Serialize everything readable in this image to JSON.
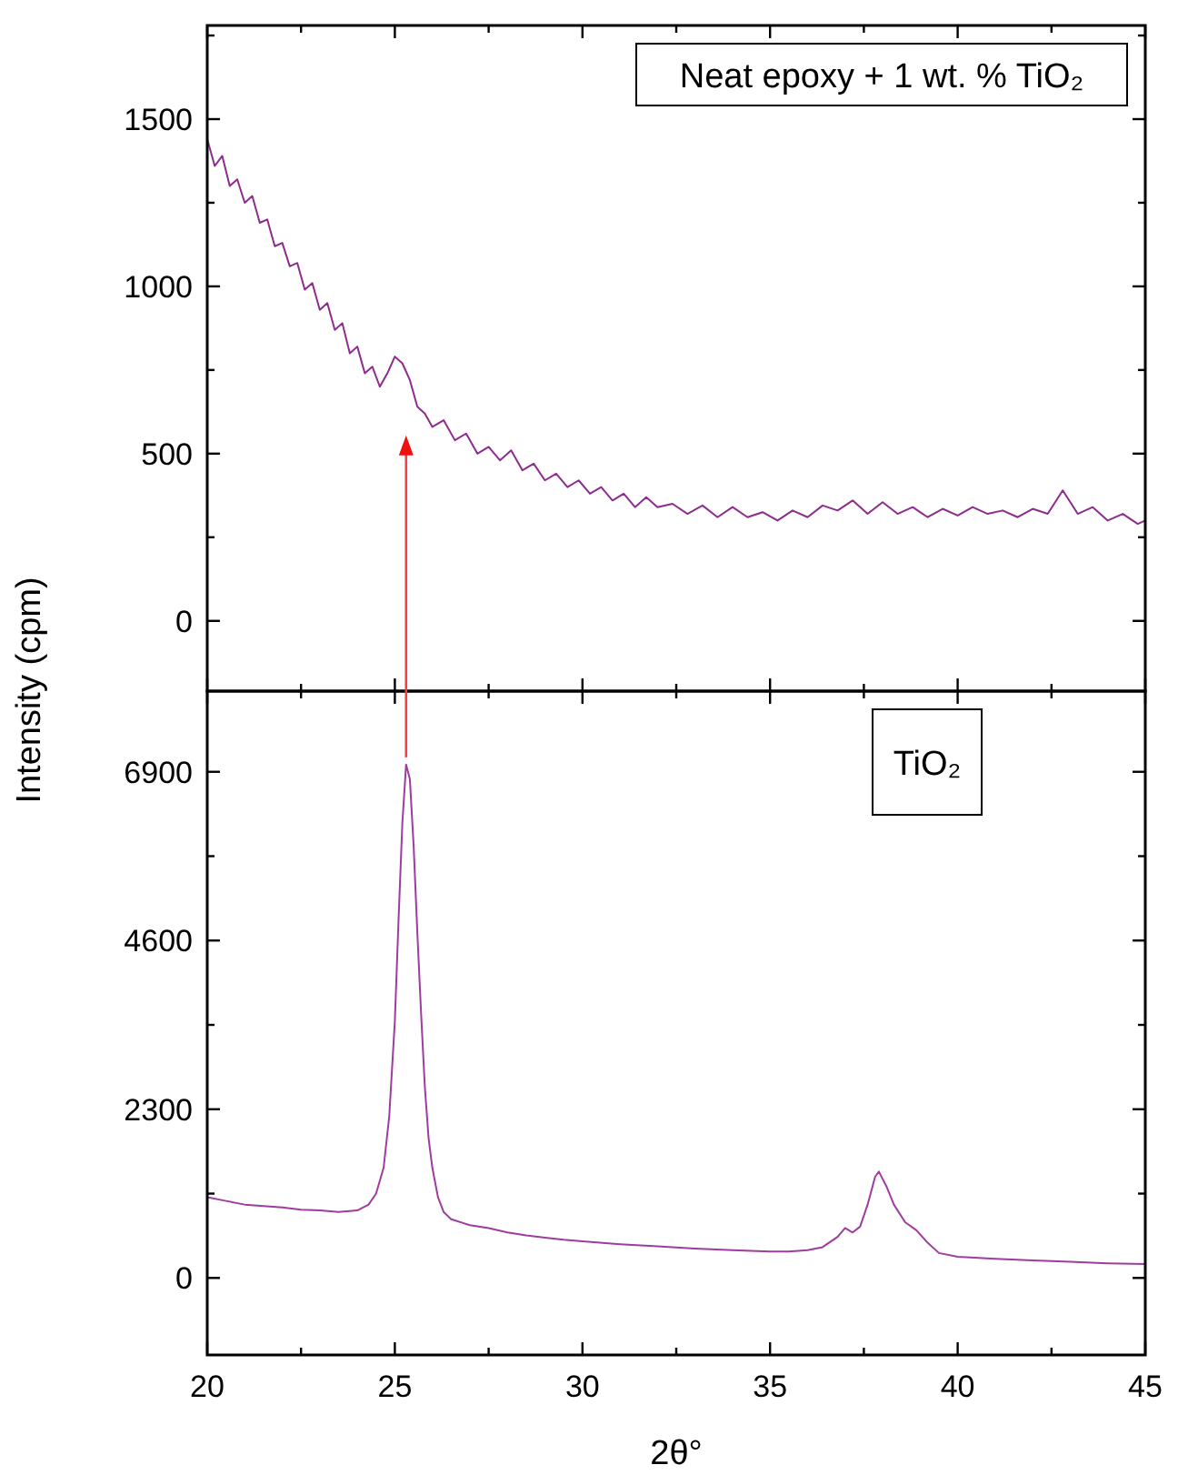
{
  "chart_data": [
    {
      "type": "line",
      "ylabel": "Intensity (cpm)",
      "annotations": [
        "Neat epoxy + 1 wt. % TiO₂"
      ],
      "tick_labels": "y",
      "xlim": [
        20,
        45
      ],
      "xticks": [
        20,
        {
          "value": 22.5,
          "label": null
        },
        25,
        {
          "value": 27.5,
          "label": null
        },
        30,
        {
          "value": 32.5,
          "label": null
        },
        35,
        {
          "value": 37.5,
          "label": null
        },
        40,
        {
          "value": 42.5,
          "label": null
        },
        45
      ],
      "ylim": [
        -210,
        1780
      ],
      "yticks": [
        0,
        {
          "value": 250,
          "label": null
        },
        500,
        {
          "value": 750,
          "label": null
        },
        1000,
        {
          "value": 1250,
          "label": null
        },
        1500,
        {
          "value": 1750,
          "label": null
        }
      ],
      "grid": false,
      "marker": "none",
      "line_style": "solid",
      "series": [
        {
          "color": "#8e2c8e",
          "x": [
            20,
            20.2,
            20.4,
            20.6,
            20.8,
            21,
            21.2,
            21.4,
            21.6,
            21.8,
            22,
            22.2,
            22.4,
            22.6,
            22.8,
            23,
            23.2,
            23.4,
            23.6,
            23.8,
            24,
            24.2,
            24.4,
            24.6,
            24.8,
            25,
            25.2,
            25.4,
            25.6,
            25.8,
            26,
            26.3,
            26.6,
            26.9,
            27.2,
            27.5,
            27.8,
            28.1,
            28.4,
            28.7,
            29,
            29.3,
            29.6,
            29.9,
            30.2,
            30.5,
            30.8,
            31.1,
            31.4,
            31.7,
            32,
            32.4,
            32.8,
            33.2,
            33.6,
            34,
            34.4,
            34.8,
            35.2,
            35.6,
            36,
            36.4,
            36.8,
            37.2,
            37.6,
            38,
            38.4,
            38.8,
            39.2,
            39.6,
            40,
            40.4,
            40.8,
            41.2,
            41.6,
            42,
            42.4,
            42.8,
            43.2,
            43.6,
            44,
            44.4,
            44.8,
            45
          ],
          "values": [
            1440,
            1360,
            1390,
            1300,
            1320,
            1250,
            1270,
            1190,
            1200,
            1120,
            1130,
            1060,
            1070,
            990,
            1010,
            930,
            950,
            870,
            890,
            800,
            820,
            740,
            760,
            700,
            740,
            790,
            770,
            720,
            640,
            620,
            580,
            600,
            540,
            560,
            500,
            520,
            480,
            510,
            450,
            470,
            420,
            440,
            400,
            420,
            380,
            400,
            360,
            380,
            340,
            370,
            340,
            350,
            320,
            345,
            310,
            340,
            310,
            325,
            300,
            330,
            310,
            345,
            330,
            360,
            320,
            355,
            320,
            340,
            310,
            335,
            315,
            340,
            320,
            330,
            310,
            335,
            320,
            390,
            320,
            340,
            300,
            320,
            290,
            300
          ]
        }
      ]
    },
    {
      "type": "line",
      "xlabel": "2θ°",
      "annotations": [
        "TiO₂"
      ],
      "xlim": [
        20,
        45
      ],
      "xticks": [
        20,
        {
          "value": 22.5,
          "label": null
        },
        25,
        {
          "value": 27.5,
          "label": null
        },
        30,
        {
          "value": 32.5,
          "label": null
        },
        35,
        {
          "value": 37.5,
          "label": null
        },
        40,
        {
          "value": 42.5,
          "label": null
        },
        45
      ],
      "ylim": [
        -1050,
        8000
      ],
      "yticks": [
        0,
        {
          "value": 1150,
          "label": null
        },
        2300,
        {
          "value": 3450,
          "label": null
        },
        4600,
        {
          "value": 5750,
          "label": null
        },
        6900
      ],
      "grid": false,
      "marker": "none",
      "line_style": "solid",
      "series": [
        {
          "color": "#a03ca0",
          "x": [
            20,
            20.5,
            21,
            21.5,
            22,
            22.5,
            23,
            23.5,
            24,
            24.3,
            24.5,
            24.7,
            24.85,
            25,
            25.1,
            25.2,
            25.3,
            25.4,
            25.5,
            25.6,
            25.7,
            25.8,
            25.9,
            26,
            26.15,
            26.3,
            26.5,
            27,
            27.5,
            28,
            28.5,
            29,
            29.5,
            30,
            31,
            32,
            33,
            34,
            35,
            35.5,
            36,
            36.4,
            36.8,
            37,
            37.2,
            37.4,
            37.6,
            37.8,
            37.9,
            38.1,
            38.3,
            38.6,
            38.9,
            39.2,
            39.5,
            40,
            41,
            42,
            43,
            44,
            45
          ],
          "values": [
            1100,
            1050,
            1000,
            980,
            960,
            930,
            920,
            900,
            920,
            1000,
            1150,
            1500,
            2200,
            3500,
            4900,
            6200,
            7000,
            6800,
            5900,
            4700,
            3600,
            2600,
            1900,
            1500,
            1100,
            900,
            800,
            720,
            680,
            620,
            580,
            550,
            520,
            500,
            460,
            430,
            400,
            380,
            360,
            360,
            380,
            420,
            560,
            680,
            620,
            700,
            1000,
            1380,
            1450,
            1250,
            1000,
            760,
            650,
            480,
            340,
            290,
            260,
            240,
            220,
            200,
            190
          ]
        }
      ]
    }
  ]
}
